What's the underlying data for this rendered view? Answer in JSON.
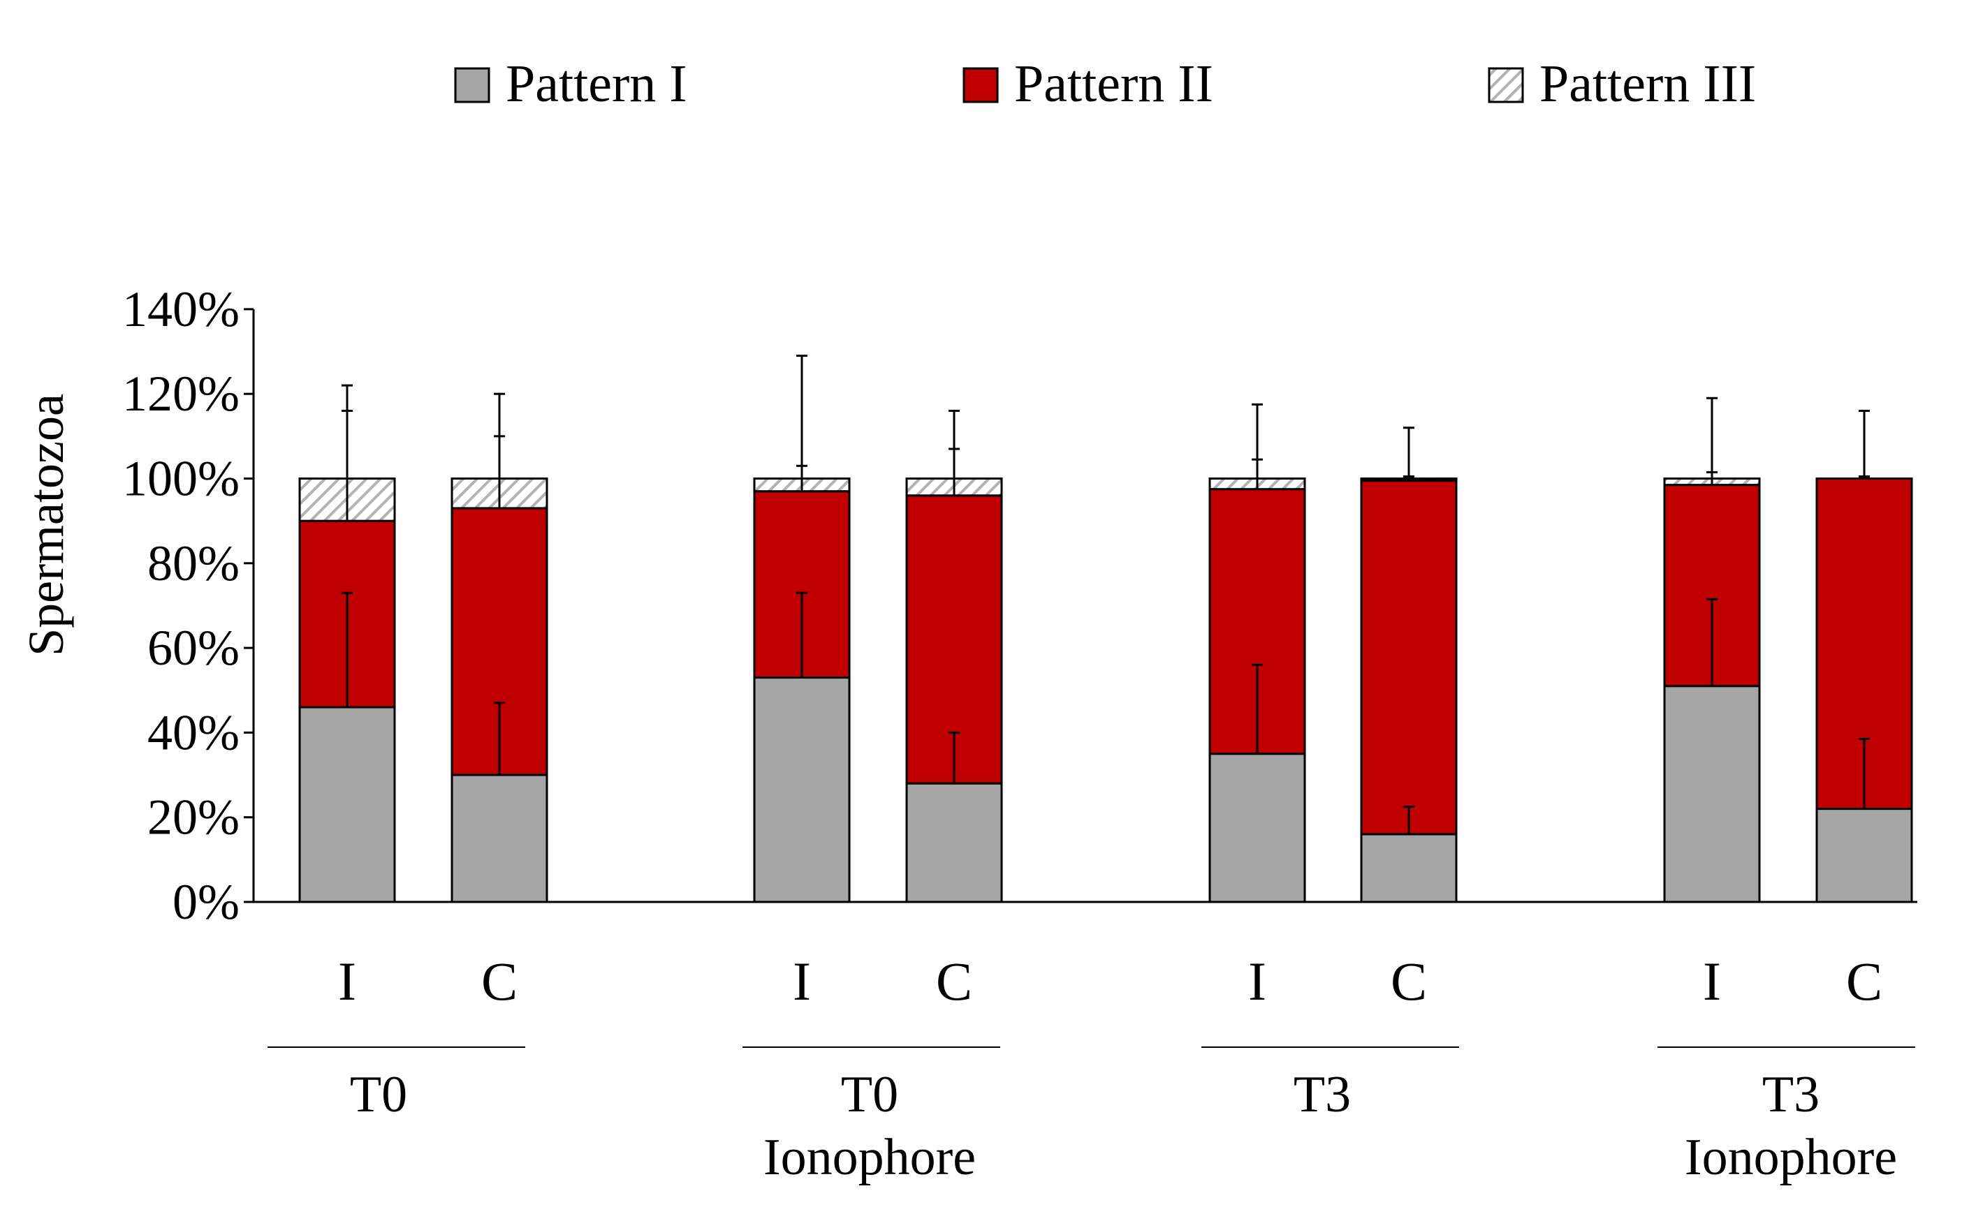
{
  "chart_data": {
    "type": "bar",
    "stacked": true,
    "title": "",
    "xlabel": "",
    "ylabel": "Spermatozoa",
    "ylim": [
      0,
      140
    ],
    "yticks": [
      0,
      20,
      40,
      60,
      80,
      100,
      120,
      140
    ],
    "ytick_labels": [
      "0%",
      "20%",
      "40%",
      "60%",
      "80%",
      "100%",
      "120%",
      "140%"
    ],
    "legend_position": "top",
    "groups": [
      {
        "label_lines": [
          "T0"
        ],
        "bars": [
          "I",
          "C"
        ]
      },
      {
        "label_lines": [
          "T0",
          "Ionophore"
        ],
        "bars": [
          "I",
          "C"
        ]
      },
      {
        "label_lines": [
          "T3"
        ],
        "bars": [
          "I",
          "C"
        ]
      },
      {
        "label_lines": [
          "T3",
          "Ionophore"
        ],
        "bars": [
          "I",
          "C"
        ]
      }
    ],
    "categories": [
      "I",
      "C",
      "I",
      "C",
      "I",
      "C",
      "I",
      "C"
    ],
    "series": [
      {
        "name": "Pattern I",
        "color": "#a6a6a6",
        "fill": "solid",
        "values": [
          46,
          30,
          53,
          28,
          35,
          16,
          51,
          22
        ],
        "error_upper": [
          73,
          47,
          73,
          40,
          56,
          22.5,
          71.5,
          38.5
        ]
      },
      {
        "name": "Pattern II",
        "color": "#c00000",
        "fill": "solid",
        "values": [
          44,
          63,
          44,
          68,
          62.5,
          83.5,
          47.5,
          78
        ],
        "error_upper": [
          116,
          110,
          103,
          107,
          104.5,
          100.5,
          101.5,
          100.5
        ]
      },
      {
        "name": "Pattern III",
        "color": "#bfbfbf",
        "fill": "hatched",
        "values": [
          10,
          7,
          3,
          4,
          2.5,
          0.5,
          1.5,
          0
        ],
        "error_upper": [
          122,
          120,
          129,
          116,
          117.5,
          112,
          119,
          116
        ]
      }
    ]
  }
}
